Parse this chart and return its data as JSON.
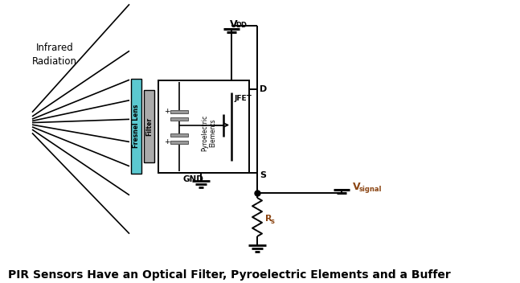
{
  "title": "PIR Sensors Have an Optical Filter, Pyroelectric Elements and a Buffer",
  "background_color": "#ffffff",
  "line_color": "#000000",
  "fresnel_lens_color": "#5bc8d0",
  "filter_color": "#aaaaaa",
  "annotation_color": "#8B4513",
  "vdd_label": "V",
  "vdd_sub": "DD",
  "vsig_label": "V",
  "vsig_sub": "signal",
  "rs_label": "R",
  "rs_sub": "s"
}
